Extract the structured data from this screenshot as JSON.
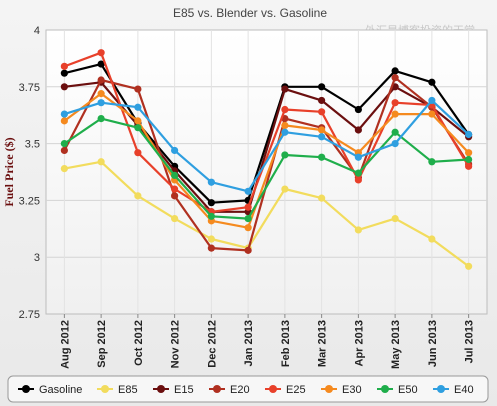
{
  "chart_data": {
    "type": "line",
    "title": "E85 vs. Blender vs. Gasoline",
    "watermark": "外汇是博客投资的天堂",
    "ylabel": "Fuel Price ($)",
    "xlabel": "",
    "ylim": [
      2.75,
      4
    ],
    "yticks": [
      "2.75",
      "3",
      "3.25",
      "3.5",
      "3.75",
      "4"
    ],
    "grid": true,
    "legend_position": "bottom",
    "categories": [
      "Aug 2012",
      "Sep 2012",
      "Oct 2012",
      "Nov 2012",
      "Dec 2012",
      "Jan 2013",
      "Feb 2013",
      "Mar 2013",
      "Apr 2013",
      "May 2013",
      "Jun 2013",
      "Jul 2013"
    ],
    "series": [
      {
        "name": "Gasoline",
        "color": "#000000",
        "values": [
          3.81,
          3.85,
          3.59,
          3.4,
          3.24,
          3.25,
          3.75,
          3.75,
          3.65,
          3.82,
          3.77,
          3.54
        ]
      },
      {
        "name": "E85",
        "color": "#f2dc5d",
        "values": [
          3.39,
          3.42,
          3.27,
          3.17,
          3.08,
          3.04,
          3.3,
          3.26,
          3.12,
          3.17,
          3.08,
          2.96
        ]
      },
      {
        "name": "E15",
        "color": "#6b0f0f",
        "values": [
          3.75,
          3.77,
          3.58,
          3.38,
          3.2,
          3.2,
          3.74,
          3.69,
          3.56,
          3.75,
          3.66,
          3.53
        ]
      },
      {
        "name": "E20",
        "color": "#b03020",
        "values": [
          3.47,
          3.78,
          3.74,
          3.27,
          3.04,
          3.03,
          3.61,
          3.57,
          3.35,
          3.79,
          3.66,
          3.41
        ]
      },
      {
        "name": "E25",
        "color": "#e8402a",
        "values": [
          3.84,
          3.9,
          3.46,
          3.3,
          3.2,
          3.22,
          3.65,
          3.64,
          3.34,
          3.68,
          3.67,
          3.4
        ]
      },
      {
        "name": "E30",
        "color": "#f58a1f",
        "values": [
          3.6,
          3.72,
          3.6,
          3.34,
          3.16,
          3.13,
          3.58,
          3.56,
          3.46,
          3.63,
          3.63,
          3.46
        ]
      },
      {
        "name": "E50",
        "color": "#1fae4b",
        "values": [
          3.5,
          3.61,
          3.57,
          3.36,
          3.18,
          3.17,
          3.45,
          3.44,
          3.37,
          3.55,
          3.42,
          3.43
        ]
      },
      {
        "name": "E40",
        "color": "#2f9fe0",
        "values": [
          3.63,
          3.68,
          3.66,
          3.47,
          3.33,
          3.29,
          3.55,
          3.53,
          3.44,
          3.5,
          3.69,
          3.54
        ]
      }
    ]
  }
}
